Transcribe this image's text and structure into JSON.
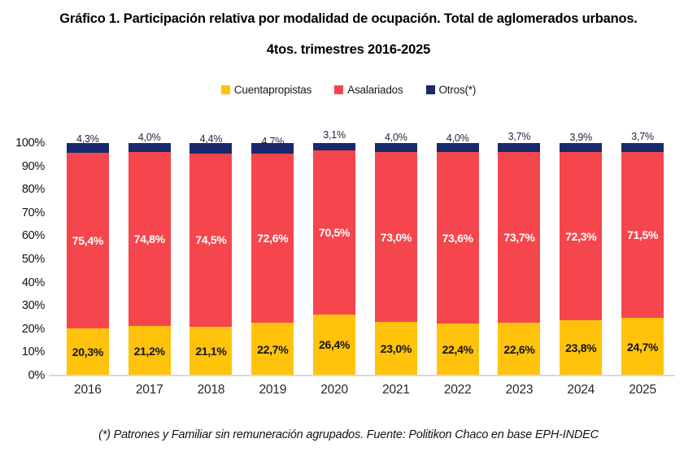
{
  "header": {
    "line1": "Gráfico 1. Participación relativa por modalidad de ocupación. Total de aglomerados urbanos.",
    "line2": "4tos. trimestres 2016-2025"
  },
  "footnote": "(*) Patrones y Familiar sin remuneración agrupados. Fuente: Politikon Chaco en base EPH-INDEC",
  "colors": {
    "cuentapropistas": "#FFC30B",
    "asalariados": "#F5464D",
    "otros": "#182A6B",
    "axis_line": "#D9D9D9",
    "background": "#FFFFFF"
  },
  "chart_data": {
    "type": "bar",
    "stacked": true,
    "title": "Gráfico 1. Participación relativa por modalidad de ocupación. Total de aglomerados urbanos.",
    "subtitle": "4tos. trimestres 2016-2025",
    "categories": [
      "2016",
      "2017",
      "2018",
      "2019",
      "2020",
      "2021",
      "2022",
      "2023",
      "2024",
      "2025"
    ],
    "series": [
      {
        "name": "Cuentapropistas",
        "key": "cuentapropistas",
        "color": "#FFC30B",
        "values": [
          20.3,
          21.2,
          21.1,
          22.7,
          26.4,
          23.0,
          22.4,
          22.6,
          23.8,
          24.7
        ],
        "labels": [
          "20,3%",
          "21,2%",
          "21,1%",
          "22,7%",
          "26,4%",
          "23,0%",
          "22,4%",
          "22,6%",
          "23,8%",
          "24,7%"
        ]
      },
      {
        "name": "Asalariados",
        "key": "asalariados",
        "color": "#F5464D",
        "values": [
          75.4,
          74.8,
          74.5,
          72.6,
          70.5,
          73.0,
          73.6,
          73.7,
          72.3,
          71.5
        ],
        "labels": [
          "75,4%",
          "74,8%",
          "74,5%",
          "72,6%",
          "70,5%",
          "73,0%",
          "73,6%",
          "73,7%",
          "72,3%",
          "71,5%"
        ]
      },
      {
        "name": "Otros(*)",
        "key": "otros",
        "color": "#182A6B",
        "values": [
          4.3,
          4.0,
          4.4,
          4.7,
          3.1,
          4.0,
          4.0,
          3.7,
          3.9,
          3.7
        ],
        "labels": [
          "4,3%",
          "4,0%",
          "4,4%",
          "4,7%",
          "3,1%",
          "4,0%",
          "4,0%",
          "3,7%",
          "3,9%",
          "3,7%"
        ]
      }
    ],
    "xlabel": "",
    "ylabel": "",
    "ylim": [
      0,
      100
    ],
    "y_ticks": [
      "100%",
      "90%",
      "80%",
      "70%",
      "60%",
      "50%",
      "40%",
      "30%",
      "20%",
      "10%",
      "0%"
    ],
    "grid": false,
    "legend_position": "top"
  }
}
